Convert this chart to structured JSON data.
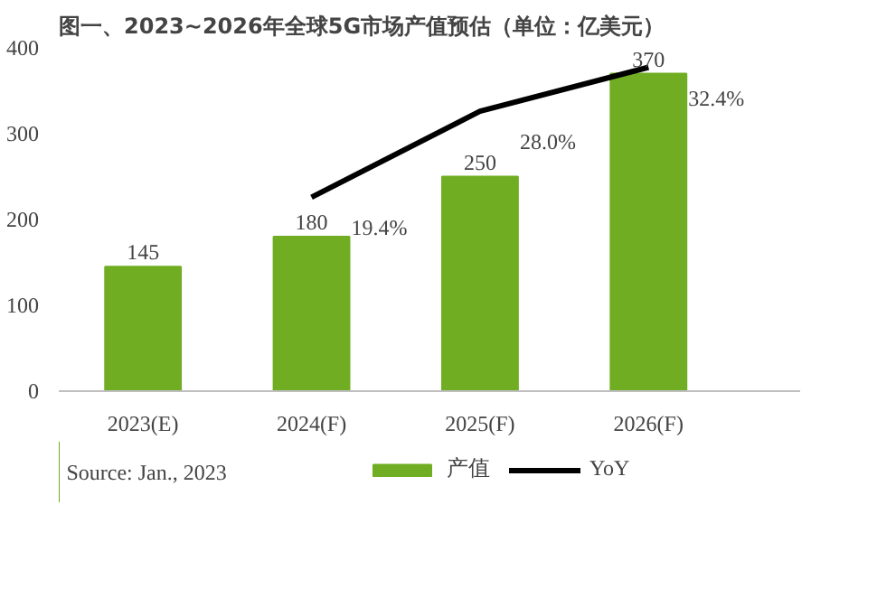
{
  "chart_data": {
    "type": "bar",
    "title": "图一、2023~2026年全球5G市场产值预估（单位：亿美元）",
    "categories": [
      "2023(E)",
      "2024(F)",
      "2025(F)",
      "2026(F)"
    ],
    "series": [
      {
        "name": "产值",
        "color": "#70ad22",
        "values": [
          145,
          180,
          250,
          370
        ]
      },
      {
        "name": "YoY",
        "type": "line",
        "axis": "y2",
        "color": "#000000",
        "values": [
          null,
          19.4,
          28.0,
          32.4
        ],
        "value_labels": [
          null,
          "19.4%",
          "28.0%",
          "32.4%"
        ]
      }
    ],
    "ylim": [
      0,
      400
    ],
    "yticks": [
      0,
      100,
      200,
      300,
      400
    ],
    "data_labels": true,
    "grid": false,
    "legend": "bottom",
    "marker": "none",
    "line_style": "solid",
    "annotations": [
      "Source: Jan., 2023"
    ]
  }
}
